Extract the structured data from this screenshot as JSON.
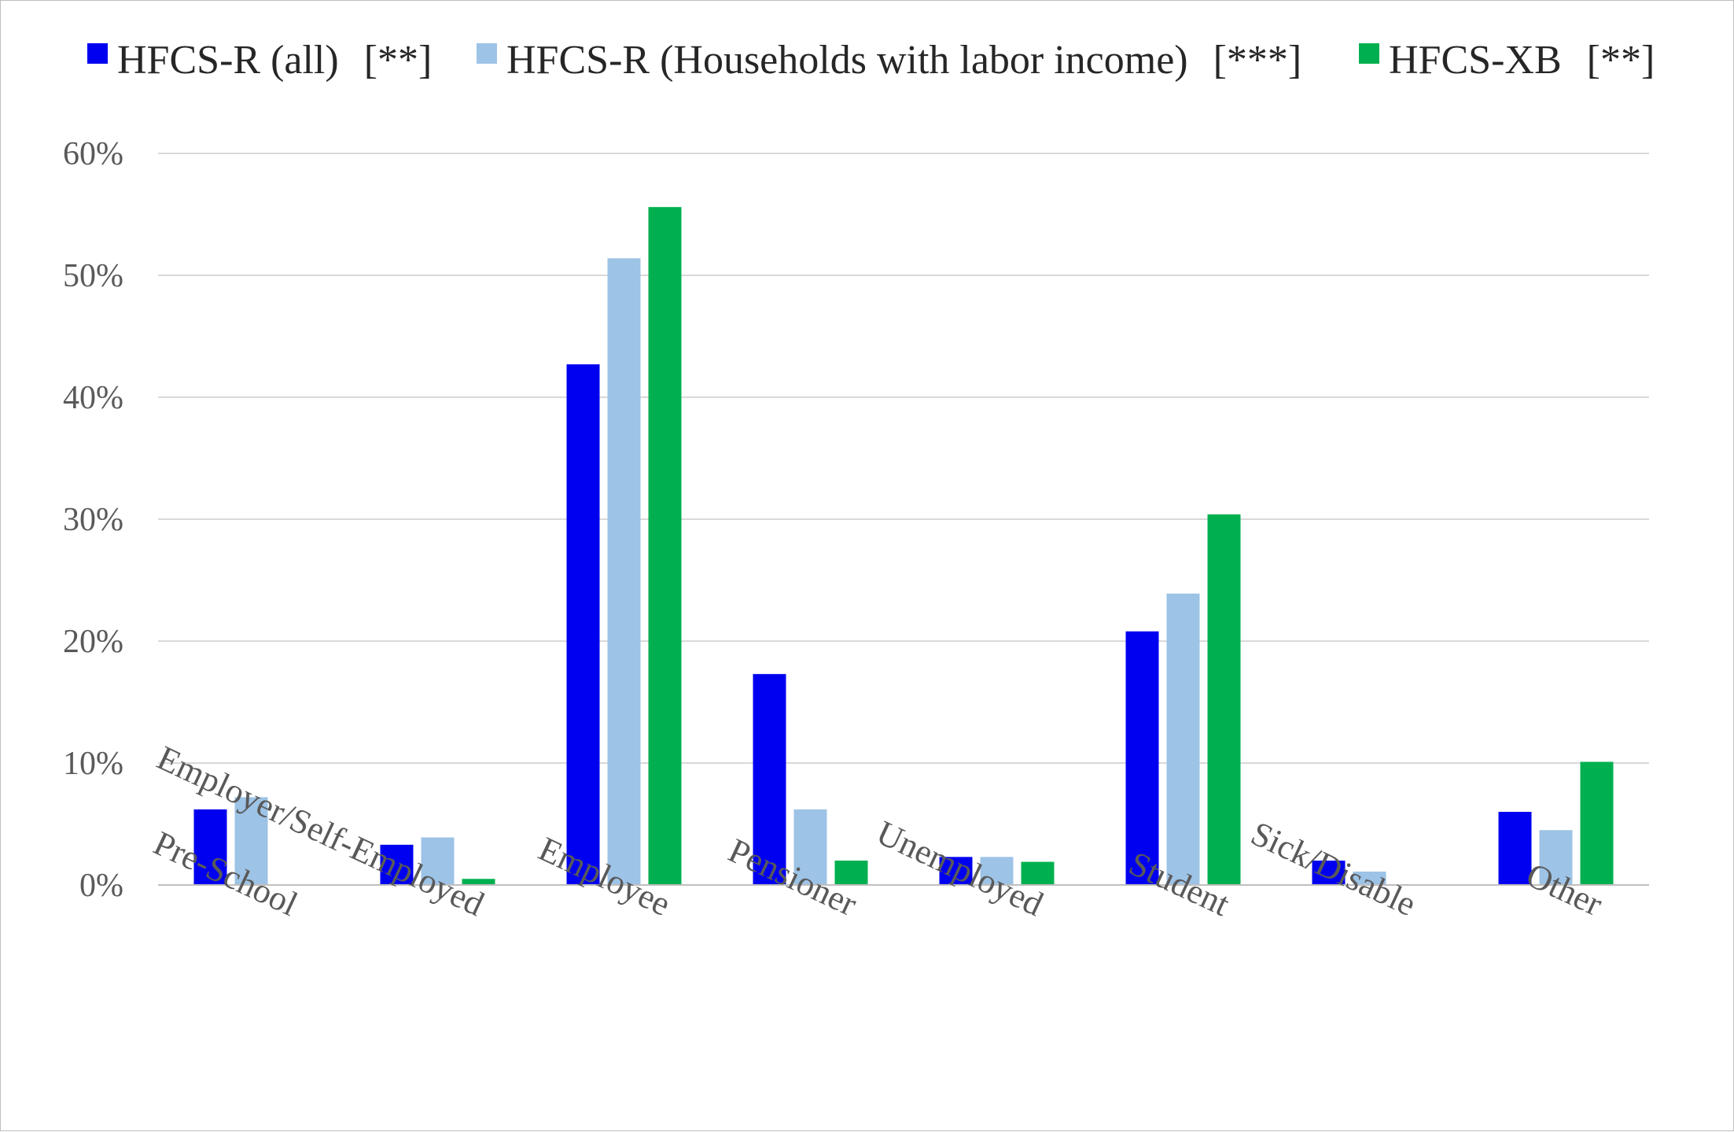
{
  "chart_data": {
    "type": "bar",
    "categories": [
      "Pre-School",
      "Employer/Self-Employed",
      "Employee",
      "Pensioner",
      "Unemployed",
      "Student",
      "Sick/Disable",
      "Other"
    ],
    "series": [
      {
        "name": "HFCS-R (all)",
        "note": "[**]",
        "color": "#0000f0",
        "values": [
          6.2,
          3.3,
          42.7,
          17.3,
          2.3,
          20.8,
          2.0,
          6.0
        ]
      },
      {
        "name": "HFCS-R (Households with labor income)",
        "note": "[***]",
        "color": "#9dc3e6",
        "values": [
          7.2,
          3.9,
          51.4,
          6.2,
          2.3,
          23.9,
          1.1,
          4.5
        ]
      },
      {
        "name": "HFCS-XB",
        "note": "[**]",
        "color": "#00b050",
        "values": [
          0.0,
          0.5,
          55.6,
          2.0,
          1.9,
          30.4,
          0.0,
          10.1
        ]
      }
    ],
    "yticks": [
      "0%",
      "10%",
      "20%",
      "30%",
      "40%",
      "50%",
      "60%"
    ],
    "ylim": [
      0,
      60
    ],
    "grid": true,
    "legend": "top",
    "colors": {
      "gridline": "#d9d9d9",
      "axis": "#bfbfbf",
      "text": "#595959"
    }
  }
}
